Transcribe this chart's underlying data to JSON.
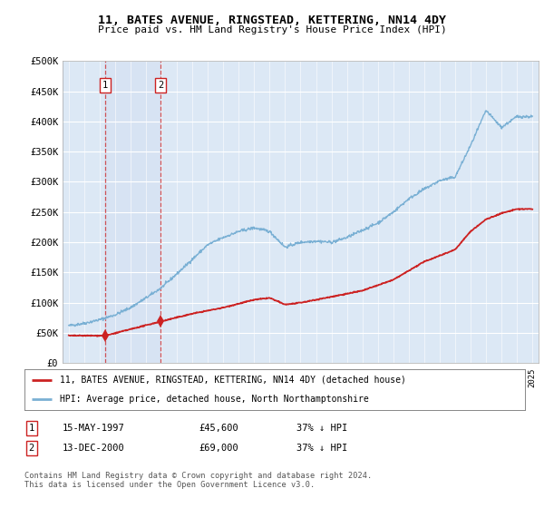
{
  "title": "11, BATES AVENUE, RINGSTEAD, KETTERING, NN14 4DY",
  "subtitle": "Price paid vs. HM Land Registry's House Price Index (HPI)",
  "ylim": [
    0,
    500000
  ],
  "yticks": [
    0,
    50000,
    100000,
    150000,
    200000,
    250000,
    300000,
    350000,
    400000,
    450000,
    500000
  ],
  "ytick_labels": [
    "£0",
    "£50K",
    "£100K",
    "£150K",
    "£200K",
    "£250K",
    "£300K",
    "£350K",
    "£400K",
    "£450K",
    "£500K"
  ],
  "hpi_color": "#7ab0d4",
  "price_color": "#cc2222",
  "sale1_date": 1997.37,
  "sale1_price": 45600,
  "sale2_date": 2000.95,
  "sale2_price": 69000,
  "sale1_label": "1",
  "sale2_label": "2",
  "sale1_display": "15-MAY-1997",
  "sale1_value_display": "£45,600",
  "sale1_hpi_display": "37% ↓ HPI",
  "sale2_display": "13-DEC-2000",
  "sale2_value_display": "£69,000",
  "sale2_hpi_display": "37% ↓ HPI",
  "legend_line1": "11, BATES AVENUE, RINGSTEAD, KETTERING, NN14 4DY (detached house)",
  "legend_line2": "HPI: Average price, detached house, North Northamptonshire",
  "footer": "Contains HM Land Registry data © Crown copyright and database right 2024.\nThis data is licensed under the Open Government Licence v3.0.",
  "background_chart": "#dce8f5",
  "background_fig": "#ffffff",
  "hpi_keypoints_x": [
    1995,
    1996,
    1997,
    1998,
    1999,
    2000,
    2001,
    2002,
    2003,
    2004,
    2005,
    2006,
    2007,
    2008,
    2009,
    2010,
    2011,
    2012,
    2013,
    2014,
    2015,
    2016,
    2017,
    2018,
    2019,
    2020,
    2021,
    2022,
    2023,
    2024,
    2025
  ],
  "hpi_keypoints_y": [
    62000,
    66000,
    72000,
    80000,
    92000,
    108000,
    125000,
    148000,
    172000,
    196000,
    208000,
    218000,
    224000,
    218000,
    192000,
    200000,
    202000,
    200000,
    208000,
    220000,
    232000,
    250000,
    272000,
    288000,
    302000,
    308000,
    360000,
    418000,
    390000,
    408000,
    408000
  ],
  "price_keypoints_x": [
    1995,
    1997.37,
    2000.95,
    2003,
    2005,
    2007,
    2008,
    2009,
    2010,
    2012,
    2014,
    2016,
    2018,
    2020,
    2021,
    2022,
    2023,
    2024,
    2025
  ],
  "price_keypoints_y": [
    45600,
    45600,
    69000,
    82000,
    92000,
    105000,
    108000,
    97000,
    100000,
    110000,
    120000,
    138000,
    168000,
    188000,
    218000,
    238000,
    248000,
    255000,
    255000
  ]
}
